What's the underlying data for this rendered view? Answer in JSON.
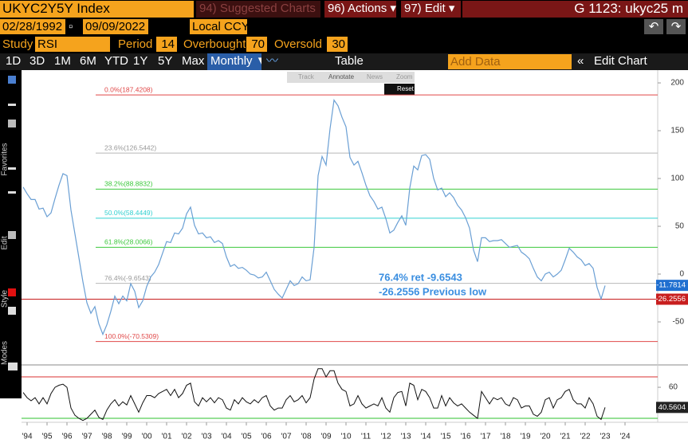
{
  "header": {
    "ticker": "UKYC2Y5Y Index",
    "suggested": "94) Suggested Charts",
    "actions": "96) Actions ▾",
    "edit": "97) Edit ▾",
    "right_title": "G 1123: ukyc25 m"
  },
  "controls": {
    "start_date": "02/28/1992",
    "end_date": "09/09/2022",
    "currency": "Local CCY",
    "study_label": "Study",
    "study": "RSI",
    "period_label": "Period",
    "period": 14,
    "overbought_label": "Overbought",
    "overbought": 70,
    "oversold_label": "Oversold",
    "oversold": 30
  },
  "ranges": [
    "1D",
    "3D",
    "1M",
    "6M",
    "YTD",
    "1Y",
    "5Y",
    "Max"
  ],
  "frequency": "Monthly ▼",
  "table": "Table",
  "add_data": "Add Data",
  "edit_chart": "Edit Chart",
  "side_labels": [
    "Favorites",
    "Edit",
    "Style",
    "Modes"
  ],
  "float_toolbar": [
    "Track",
    "Annotate",
    "News",
    "Zoom"
  ],
  "reset": "Reset",
  "chart_data": [
    {
      "type": "line",
      "color": "#6a9fd4",
      "x": [
        1993.8,
        1994.0,
        1994.2,
        1994.4,
        1994.6,
        1994.8,
        1995.0,
        1995.2,
        1995.4,
        1995.6,
        1995.8,
        1996.0,
        1996.2,
        1996.4,
        1996.6,
        1996.8,
        1997.0,
        1997.2,
        1997.4,
        1997.6,
        1997.8,
        1998.0,
        1998.2,
        1998.4,
        1998.6,
        1998.8,
        1999.0,
        1999.2,
        1999.4,
        1999.6,
        1999.8,
        2000.0,
        2000.2,
        2000.4,
        2000.6,
        2000.8,
        2001.0,
        2001.2,
        2001.4,
        2001.6,
        2001.8,
        2002.0,
        2002.2,
        2002.4,
        2002.6,
        2002.8,
        2003.0,
        2003.2,
        2003.4,
        2003.6,
        2003.8,
        2004.0,
        2004.2,
        2004.4,
        2004.6,
        2004.8,
        2005.0,
        2005.2,
        2005.4,
        2005.6,
        2005.8,
        2006.0,
        2006.2,
        2006.4,
        2006.6,
        2006.8,
        2007.0,
        2007.2,
        2007.4,
        2007.6,
        2007.8,
        2008.0,
        2008.2,
        2008.4,
        2008.6,
        2008.8,
        2009.0,
        2009.2,
        2009.4,
        2009.6,
        2009.8,
        2010.0,
        2010.2,
        2010.4,
        2010.6,
        2010.8,
        2011.0,
        2011.2,
        2011.4,
        2011.6,
        2011.8,
        2012.0,
        2012.2,
        2012.4,
        2012.6,
        2012.8,
        2013.0,
        2013.2,
        2013.4,
        2013.6,
        2013.8,
        2014.0,
        2014.2,
        2014.4,
        2014.6,
        2014.8,
        2015.0,
        2015.2,
        2015.4,
        2015.6,
        2015.8,
        2016.0,
        2016.2,
        2016.4,
        2016.6,
        2016.8,
        2017.0,
        2017.2,
        2017.4,
        2017.6,
        2017.8,
        2018.0,
        2018.2,
        2018.4,
        2018.6,
        2018.8,
        2019.0,
        2019.2,
        2019.4,
        2019.6,
        2019.8,
        2020.0,
        2020.2,
        2020.4,
        2020.6,
        2020.8,
        2021.0,
        2021.2,
        2021.4,
        2021.6,
        2021.8,
        2022.0,
        2022.2,
        2022.4,
        2022.6,
        2022.8,
        2023.0
      ],
      "values": [
        91,
        84,
        78,
        78,
        68,
        69,
        60,
        64,
        79,
        93,
        105,
        103,
        67,
        42,
        17,
        -8,
        -30,
        -41,
        -34,
        -52,
        -63,
        -53,
        -39,
        -23,
        -31,
        -23,
        -28,
        -10,
        -18,
        -35,
        -28,
        -13,
        -3,
        2,
        10,
        22,
        34,
        33,
        43,
        42,
        48,
        63,
        70,
        51,
        42,
        43,
        38,
        39,
        33,
        35,
        32,
        18,
        8,
        10,
        6,
        7,
        4,
        0,
        -1,
        -4,
        -3,
        2,
        -7,
        -16,
        -21,
        -25,
        -16,
        -7,
        -12,
        -10,
        -3,
        -7,
        -6,
        28,
        103,
        123,
        114,
        152,
        182,
        176,
        164,
        154,
        122,
        114,
        118,
        106,
        93,
        82,
        76,
        68,
        70,
        58,
        43,
        46,
        54,
        61,
        51,
        90,
        113,
        109,
        124,
        125,
        120,
        100,
        88,
        90,
        81,
        85,
        80,
        72,
        67,
        59,
        48,
        25,
        13,
        38,
        38,
        34,
        35,
        35,
        36,
        32,
        28,
        29,
        30,
        23,
        20,
        16,
        6,
        -3,
        -7,
        0,
        2,
        -3,
        0,
        4,
        15,
        27,
        23,
        18,
        15,
        9,
        11,
        6,
        -14,
        -26,
        -12
      ],
      "xlim": [
        1993.72,
        2025.64
      ],
      "xticks": [
        {
          "value": 1994,
          "label": "'94"
        },
        {
          "value": 1995,
          "label": "'95"
        },
        {
          "value": 1996,
          "label": "'96"
        },
        {
          "value": 1997,
          "label": "'97"
        },
        {
          "value": 1998,
          "label": "'98"
        },
        {
          "value": 1999,
          "label": "'99"
        },
        {
          "value": 2000,
          "label": "'00"
        },
        {
          "value": 2001,
          "label": "'01"
        },
        {
          "value": 2002,
          "label": "'02"
        },
        {
          "value": 2003,
          "label": "'03"
        },
        {
          "value": 2004,
          "label": "'04"
        },
        {
          "value": 2005,
          "label": "'05"
        },
        {
          "value": 2006,
          "label": "'06"
        },
        {
          "value": 2007,
          "label": "'07"
        },
        {
          "value": 2008,
          "label": "'08"
        },
        {
          "value": 2009,
          "label": "'09"
        },
        {
          "value": 2010,
          "label": "'10"
        },
        {
          "value": 2011,
          "label": "'11"
        },
        {
          "value": 2012,
          "label": "'12"
        },
        {
          "value": 2013,
          "label": "'13"
        },
        {
          "value": 2014,
          "label": "'14"
        },
        {
          "value": 2015,
          "label": "'15"
        },
        {
          "value": 2016,
          "label": "'16"
        },
        {
          "value": 2017,
          "label": "'17"
        },
        {
          "value": 2018,
          "label": "'18"
        },
        {
          "value": 2019,
          "label": "'19"
        },
        {
          "value": 2020,
          "label": "'20"
        },
        {
          "value": 2021,
          "label": "'21"
        },
        {
          "value": 2022,
          "label": "'22"
        },
        {
          "value": 2023,
          "label": "'23"
        },
        {
          "value": 2024,
          "label": "'24"
        }
      ],
      "ylim": [
        -92.5,
        211.7
      ],
      "yticks": [
        200,
        150,
        100,
        50,
        0,
        -50
      ],
      "fib_levels": [
        {
          "value": 187.4208,
          "label": "0.0%(187.4208)",
          "color": "#e04848"
        },
        {
          "value": 126.5442,
          "label": "23.6%(126.5442)",
          "color": "#b8b8b8"
        },
        {
          "value": 88.8832,
          "label": "38.2%(88.8832)",
          "color": "#3cc83c"
        },
        {
          "value": 58.4449,
          "label": "50.0%(58.4449)",
          "color": "#30d0d0"
        },
        {
          "value": 28.0066,
          "label": "61.8%(28.0066)",
          "color": "#3cc83c"
        },
        {
          "value": -9.6543,
          "label": "76.4%(-9.6543)",
          "color": "#b8b8b8"
        },
        {
          "value": -70.5309,
          "label": "100.0%(-70.5309)",
          "color": "#e04848"
        }
      ],
      "reference_line": {
        "value": -26.2556,
        "color": "#c81e1e"
      },
      "last_value": -11.7814,
      "last_color": "#1f6fd0",
      "annotations": [
        "76.4% ret -9.6543",
        "-26.2556 Previous low"
      ]
    },
    {
      "type": "line",
      "color": "#111111",
      "values": [
        55,
        50,
        47,
        50,
        44,
        50,
        44,
        54,
        60,
        62,
        63,
        60,
        40,
        33,
        30,
        28,
        30,
        34,
        38,
        31,
        29,
        38,
        44,
        48,
        42,
        46,
        43,
        52,
        44,
        36,
        45,
        52,
        52,
        50,
        54,
        56,
        58,
        52,
        58,
        50,
        54,
        62,
        64,
        46,
        42,
        50,
        46,
        50,
        45,
        50,
        48,
        40,
        38,
        48,
        44,
        50,
        46,
        44,
        48,
        45,
        50,
        52,
        42,
        38,
        40,
        40,
        48,
        52,
        46,
        48,
        52,
        45,
        50,
        68,
        78,
        78,
        70,
        76,
        76,
        64,
        58,
        56,
        42,
        44,
        52,
        44,
        40,
        42,
        44,
        42,
        50,
        40,
        36,
        50,
        55,
        56,
        42,
        64,
        62,
        48,
        58,
        56,
        50,
        40,
        40,
        52,
        42,
        50,
        45,
        42,
        44,
        40,
        36,
        33,
        30,
        56,
        50,
        44,
        50,
        48,
        50,
        44,
        42,
        50,
        48,
        40,
        42,
        42,
        34,
        32,
        36,
        48,
        50,
        40,
        48,
        50,
        56,
        58,
        48,
        44,
        44,
        40,
        50,
        44,
        32,
        29,
        40.5604
      ],
      "ylim": [
        26.2,
        78.5
      ],
      "yticks": [
        60
      ],
      "last_value": 40.5604
    }
  ]
}
